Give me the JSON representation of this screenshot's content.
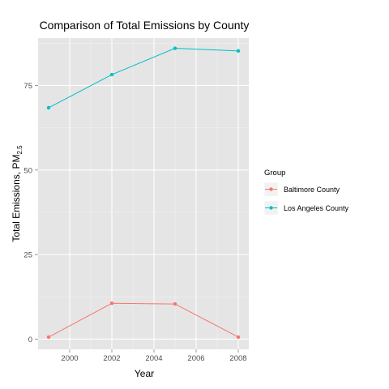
{
  "chart_data": {
    "type": "line",
    "title": "Comparison of Total Emissions by County",
    "xlabel": "Year",
    "ylabel": "Total Emissions, PM",
    "ylabel_sub": "2.5",
    "x": [
      1999,
      2002,
      2005,
      2008
    ],
    "xticks": [
      2000,
      2002,
      2004,
      2006,
      2008
    ],
    "yticks": [
      0,
      25,
      50,
      75
    ],
    "xlim": [
      1998.5,
      2008.5
    ],
    "ylim": [
      -3,
      89
    ],
    "grid": true,
    "legend_title": "Group",
    "legend_position": "right",
    "series": [
      {
        "name": "Baltimore County",
        "color": "#f8766d",
        "values": [
          0.6,
          10.6,
          10.4,
          0.6
        ]
      },
      {
        "name": "Los Angeles County",
        "color": "#00bfc4",
        "values": [
          68.4,
          78.2,
          86.0,
          85.2
        ]
      }
    ]
  }
}
